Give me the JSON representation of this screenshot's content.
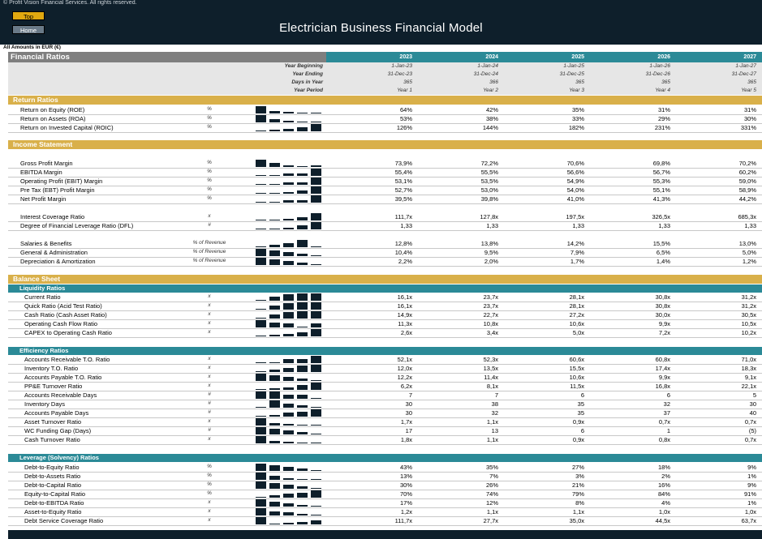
{
  "header": {
    "copyright": "© Profit Vision Financial Services. All rights reserved.",
    "btn_top": "Top",
    "btn_home": "Home",
    "title": "Electrician Business Financial Model",
    "amounts": "All Amounts in  EUR (€)"
  },
  "table_header": {
    "section_title": "Financial Ratios",
    "years": [
      "2023",
      "2024",
      "2025",
      "2026",
      "2027"
    ],
    "meta_rows": [
      {
        "label": "Year Beginning",
        "values": [
          "1-Jan-23",
          "1-Jan-24",
          "1-Jan-25",
          "1-Jan-26",
          "1-Jan-27"
        ]
      },
      {
        "label": "Year Ending",
        "values": [
          "31-Dec-23",
          "31-Dec-24",
          "31-Dec-25",
          "31-Dec-26",
          "31-Dec-27"
        ]
      },
      {
        "label": "Days in Year",
        "values": [
          "365",
          "366",
          "365",
          "365",
          "365"
        ]
      },
      {
        "label": "Year Period",
        "values": [
          "Year 1",
          "Year 2",
          "Year 3",
          "Year 4",
          "Year 5"
        ]
      }
    ]
  },
  "sections": {
    "return_ratios": "Return Ratios",
    "income_statement": "Income Statement",
    "balance_sheet": "Balance Sheet",
    "liquidity": "Liquidity Ratios",
    "efficiency": "Efficiency Ratios",
    "leverage": "Leverage (Solvency) Ratios"
  },
  "rows": [
    {
      "label": "Return on Equity (ROE)",
      "unit": "%",
      "values": [
        "64%",
        "42%",
        "35%",
        "31%",
        "31%"
      ],
      "spark": [
        1,
        0.35,
        0.2,
        0.1,
        0.1
      ]
    },
    {
      "label": "Return on Assets (ROA)",
      "unit": "%",
      "values": [
        "53%",
        "38%",
        "33%",
        "29%",
        "30%"
      ],
      "spark": [
        1,
        0.4,
        0.2,
        0.1,
        0.12
      ]
    },
    {
      "label": "Return on Invested Capital (ROIC)",
      "unit": "%",
      "values": [
        "126%",
        "144%",
        "182%",
        "231%",
        "331%"
      ],
      "spark": [
        0.1,
        0.2,
        0.35,
        0.55,
        1
      ]
    },
    {
      "label": "Gross Profit Margin",
      "unit": "%",
      "values": [
        "73,9%",
        "72,2%",
        "70,6%",
        "69,8%",
        "70,2%"
      ],
      "spark": [
        1,
        0.6,
        0.25,
        0.1,
        0.2
      ]
    },
    {
      "label": "EBITDA Margin",
      "unit": "%",
      "values": [
        "55,4%",
        "55,5%",
        "56,6%",
        "56,7%",
        "60,2%"
      ],
      "spark": [
        0.1,
        0.12,
        0.3,
        0.32,
        1
      ]
    },
    {
      "label": "Operating Profit (EBIT) Margin",
      "unit": "%",
      "values": [
        "53,1%",
        "53,5%",
        "54,9%",
        "55,3%",
        "59,0%"
      ],
      "spark": [
        0.1,
        0.15,
        0.3,
        0.35,
        1
      ]
    },
    {
      "label": "Pre Tax (EBT) Profit Margin",
      "unit": "%",
      "values": [
        "52,7%",
        "53,0%",
        "54,0%",
        "55,1%",
        "58,9%"
      ],
      "spark": [
        0.1,
        0.15,
        0.25,
        0.4,
        1
      ]
    },
    {
      "label": "Net Profit Margin",
      "unit": "%",
      "values": [
        "39,5%",
        "39,8%",
        "41,0%",
        "41,3%",
        "44,2%"
      ],
      "spark": [
        0.1,
        0.15,
        0.3,
        0.35,
        1
      ]
    },
    {
      "label": "Interest Coverage Ratio",
      "unit": "x",
      "values": [
        "111,7x",
        "127,8x",
        "197,5x",
        "326,5x",
        "685,3x"
      ],
      "spark": [
        0.1,
        0.12,
        0.2,
        0.45,
        1
      ]
    },
    {
      "label": "Degree of Financial Leverage Ratio (DFL)",
      "unit": "#",
      "values": [
        "1,33",
        "1,33",
        "1,33",
        "1,33",
        "1,33"
      ],
      "spark": [
        0.1,
        0.1,
        0.2,
        0.5,
        1
      ]
    },
    {
      "label": "Salaries & Benefits",
      "unit": "% of Revenue",
      "values": [
        "12,8%",
        "13,8%",
        "14,2%",
        "15,5%",
        "13,0%"
      ],
      "spark": [
        0.1,
        0.35,
        0.55,
        1,
        0.15
      ]
    },
    {
      "label": "General & Administration",
      "unit": "% of Revenue",
      "values": [
        "10,4%",
        "9,5%",
        "7,9%",
        "6,5%",
        "5,0%"
      ],
      "spark": [
        1,
        0.75,
        0.5,
        0.3,
        0.1
      ]
    },
    {
      "label": "Depreciation & Amortization",
      "unit": "% of Revenue",
      "values": [
        "2,2%",
        "2,0%",
        "1,7%",
        "1,4%",
        "1,2%"
      ],
      "spark": [
        1,
        0.75,
        0.5,
        0.3,
        0.1
      ]
    },
    {
      "label": "Current Ratio",
      "unit": "x",
      "values": [
        "16,1x",
        "23,7x",
        "28,1x",
        "30,8x",
        "31,2x"
      ],
      "spark": [
        0.1,
        0.55,
        0.85,
        0.97,
        1
      ]
    },
    {
      "label": "Quick Ratio (Acid Test Ratio)",
      "unit": "x",
      "values": [
        "16,1x",
        "23,7x",
        "28,1x",
        "30,8x",
        "31,2x"
      ],
      "spark": [
        0.1,
        0.55,
        0.85,
        0.97,
        1
      ]
    },
    {
      "label": "Cash Ratio (Cash Asset Ratio)",
      "unit": "x",
      "values": [
        "14,9x",
        "22,7x",
        "27,2x",
        "30,0x",
        "30,5x"
      ],
      "spark": [
        0.1,
        0.55,
        0.85,
        0.97,
        1
      ]
    },
    {
      "label": "Operating Cash Flow Ratio",
      "unit": "x",
      "values": [
        "11,3x",
        "10,8x",
        "10,6x",
        "9,9x",
        "10,5x"
      ],
      "spark": [
        1,
        0.7,
        0.55,
        0.1,
        0.5
      ]
    },
    {
      "label": "CAPEX to Operating Cash Ratio",
      "unit": "x",
      "values": [
        "2,6x",
        "3,4x",
        "5,0x",
        "7,2x",
        "10,2x"
      ],
      "spark": [
        0.1,
        0.18,
        0.35,
        0.6,
        1
      ]
    },
    {
      "label": "Accounts Receivable T.O. Ratio",
      "unit": "x",
      "values": [
        "52,1x",
        "52,3x",
        "60,6x",
        "60,8x",
        "71,0x"
      ],
      "spark": [
        0.1,
        0.12,
        0.5,
        0.52,
        1
      ]
    },
    {
      "label": "Inventory T.O. Ratio",
      "unit": "x",
      "values": [
        "12,0x",
        "13,5x",
        "15,5x",
        "17,4x",
        "18,3x"
      ],
      "spark": [
        0.1,
        0.3,
        0.6,
        0.9,
        1
      ]
    },
    {
      "label": "Accounts Payable T.O. Ratio",
      "unit": "x",
      "values": [
        "12,2x",
        "11,4x",
        "10,6x",
        "9,9x",
        "9,1x"
      ],
      "spark": [
        1,
        0.75,
        0.5,
        0.3,
        0.1
      ]
    },
    {
      "label": "PP&E Turnover Ratio",
      "unit": "x",
      "values": [
        "6,2x",
        "8,1x",
        "11,5x",
        "16,8x",
        "22,1x"
      ],
      "spark": [
        0.1,
        0.2,
        0.35,
        0.7,
        1
      ]
    },
    {
      "label": "Accounts Receivable Days",
      "unit": "#",
      "values": [
        "7",
        "7",
        "6",
        "6",
        "5"
      ],
      "spark": [
        1,
        1,
        0.5,
        0.5,
        0.1
      ]
    },
    {
      "label": "Inventory Days",
      "unit": "#",
      "values": [
        "30",
        "38",
        "35",
        "32",
        "30"
      ],
      "spark": [
        0.1,
        1,
        0.6,
        0.3,
        0.1
      ]
    },
    {
      "label": "Accounts Payable Days",
      "unit": "#",
      "values": [
        "30",
        "32",
        "35",
        "37",
        "40"
      ],
      "spark": [
        0.1,
        0.25,
        0.5,
        0.7,
        1
      ]
    },
    {
      "label": "Asset Turnover Ratio",
      "unit": "x",
      "values": [
        "1,7x",
        "1,1x",
        "0,9x",
        "0,7x",
        "0,7x"
      ],
      "spark": [
        1,
        0.35,
        0.2,
        0.1,
        0.1
      ]
    },
    {
      "label": "WC Funding Gap (Days)",
      "unit": "#",
      "values": [
        "17",
        "13",
        "6",
        "1",
        "(5)"
      ],
      "spark": [
        1,
        0.8,
        0.5,
        0.3,
        0.1
      ]
    },
    {
      "label": "Cash Turnover Ratio",
      "unit": "x",
      "values": [
        "1,8x",
        "1,1x",
        "0,9x",
        "0,8x",
        "0,7x"
      ],
      "spark": [
        1,
        0.35,
        0.2,
        0.12,
        0.1
      ]
    },
    {
      "label": "Debt-to-Equity Ratio",
      "unit": "%",
      "values": [
        "43%",
        "35%",
        "27%",
        "18%",
        "9%"
      ],
      "spark": [
        1,
        0.8,
        0.6,
        0.35,
        0.1
      ]
    },
    {
      "label": "Debt-to-Assets Ratio",
      "unit": "%",
      "values": [
        "13%",
        "7%",
        "3%",
        "2%",
        "1%"
      ],
      "spark": [
        1,
        0.5,
        0.2,
        0.12,
        0.1
      ]
    },
    {
      "label": "Debt-to-Capital Ratio",
      "unit": "%",
      "values": [
        "30%",
        "26%",
        "21%",
        "16%",
        "9%"
      ],
      "spark": [
        1,
        0.8,
        0.6,
        0.35,
        0.1
      ]
    },
    {
      "label": "Equity-to-Capital Ratio",
      "unit": "%",
      "values": [
        "70%",
        "74%",
        "79%",
        "84%",
        "91%"
      ],
      "spark": [
        0.1,
        0.3,
        0.5,
        0.7,
        1
      ]
    },
    {
      "label": "Debt-to-EBITDA Ratio",
      "unit": "x",
      "values": [
        "17%",
        "12%",
        "8%",
        "4%",
        "1%"
      ],
      "spark": [
        1,
        0.7,
        0.45,
        0.25,
        0.1
      ]
    },
    {
      "label": "Asset-to-Equity Ratio",
      "unit": "x",
      "values": [
        "1,2x",
        "1,1x",
        "1,1x",
        "1,0x",
        "1,0x"
      ],
      "spark": [
        1,
        0.6,
        0.45,
        0.2,
        0.1
      ]
    },
    {
      "label": "Debt Service Coverage Ratio",
      "unit": "x",
      "values": [
        "111,7x",
        "27,7x",
        "35,0x",
        "44,5x",
        "63,7x"
      ],
      "spark": [
        1,
        0.1,
        0.2,
        0.35,
        0.55
      ]
    }
  ]
}
